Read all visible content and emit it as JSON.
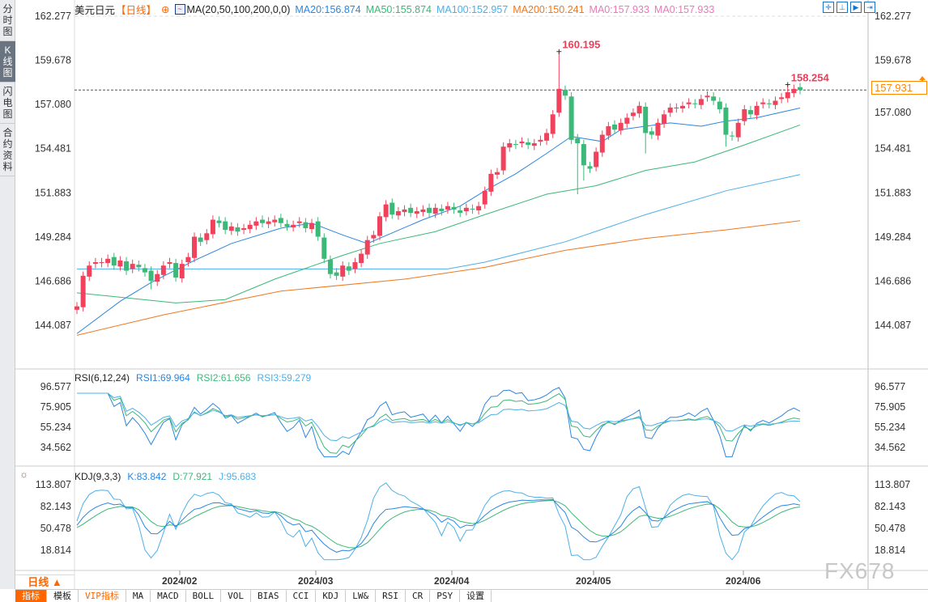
{
  "sidebar": {
    "tabs": [
      {
        "label": "分时图",
        "active": false
      },
      {
        "label": "K线图",
        "active": true
      },
      {
        "label": "闪电图",
        "active": false
      },
      {
        "label": "合约资料",
        "active": false
      }
    ]
  },
  "header": {
    "symbol": "美元日元",
    "period": "【日线】",
    "indicator": "MA(20,50,100,200,0,0)",
    "ma20": "MA20:156.874",
    "ma50": "MA50:155.874",
    "ma100": "MA100:152.957",
    "ma200": "MA200:150.241",
    "ma0a": "MA0:157.933",
    "ma0b": "MA0:157.933"
  },
  "colors": {
    "up": "#f0425c",
    "down": "#3cb878",
    "ma20": "#2a86e0",
    "ma50": "#3cb878",
    "ma100": "#4cb0e8",
    "ma200": "#f07820",
    "ma0": "#e87ab8"
  },
  "price_axis": [
    "162.277",
    "159.678",
    "157.080",
    "154.481",
    "151.883",
    "149.284",
    "146.686",
    "144.087"
  ],
  "last_price": "157.931",
  "annotations": {
    "high": "160.195",
    "recent_high": "158.254"
  },
  "rsi": {
    "title": "RSI(6,12,24)",
    "rsi1": "RSI1:69.964",
    "rsi2": "RSI2:61.656",
    "rsi3": "RSI3:59.279",
    "axis": [
      "96.577",
      "75.905",
      "55.234",
      "34.562"
    ]
  },
  "kdj": {
    "title": "KDJ(9,3,3)",
    "k": "K:83.842",
    "d": "D:77.921",
    "j": "J:95.683",
    "axis": [
      "113.807",
      "82.143",
      "50.478",
      "18.814"
    ]
  },
  "time_axis": [
    "2024/02",
    "2024/03",
    "2024/04",
    "2024/05",
    "2024/06"
  ],
  "period_selector": "日线 ▲",
  "toolbar": [
    "指标",
    "模板",
    "VIP指标",
    "MA",
    "MACD",
    "BOLL",
    "VOL",
    "BIAS",
    "CCI",
    "KDJ",
    "LW&",
    "RSI",
    "CR",
    "PSY",
    "设置"
  ],
  "watermark": "FX678",
  "chart_data": {
    "type": "candlestick",
    "open_first": 145.0,
    "closes": [
      145.2,
      147.0,
      147.6,
      147.8,
      147.8,
      148.0,
      147.6,
      147.9,
      147.3,
      147.7,
      147.5,
      147.2,
      146.7,
      147.1,
      147.6,
      147.8,
      146.9,
      147.7,
      148.1,
      149.3,
      149.0,
      149.5,
      150.3,
      150.1,
      149.7,
      149.9,
      149.6,
      149.8,
      150.0,
      150.2,
      150.1,
      150.2,
      150.3,
      150.1,
      149.9,
      150.0,
      150.2,
      149.8,
      150.1,
      149.3,
      148.0,
      147.1,
      147.0,
      147.6,
      147.3,
      147.8,
      148.3,
      149.1,
      149.4,
      150.5,
      151.2,
      150.6,
      150.8,
      150.9,
      150.7,
      150.8,
      150.9,
      150.7,
      151.0,
      150.8,
      151.1,
      150.9,
      150.7,
      151.0,
      150.9,
      151.1,
      152.0,
      153.0,
      153.1,
      154.6,
      154.8,
      154.7,
      154.9,
      154.7,
      154.8,
      155.0,
      155.4,
      156.5,
      158.0,
      157.6,
      155.0,
      154.8,
      153.5,
      153.3,
      154.3,
      155.3,
      155.8,
      155.6,
      156.0,
      156.3,
      156.6,
      157.0,
      155.4,
      155.3,
      156.0,
      156.5,
      156.9,
      156.9,
      157.0,
      157.2,
      157.1,
      157.4,
      157.6,
      157.3,
      156.8,
      155.3,
      155.2,
      156.0,
      156.8,
      156.5,
      157.0,
      157.2,
      157.1,
      157.3,
      157.5,
      157.8,
      158.0,
      157.93
    ],
    "high_overrides": {
      "78": 160.195,
      "115": 158.254,
      "79": 158.2
    },
    "low_overrides": {
      "81": 151.8,
      "82": 152.6,
      "92": 154.2,
      "105": 154.6,
      "12": 146.2
    },
    "ma_lines": {
      "ma20": [
        [
          0,
          143.6
        ],
        [
          7,
          145.5
        ],
        [
          12,
          146.6
        ],
        [
          19,
          147.9
        ],
        [
          25,
          148.9
        ],
        [
          33,
          149.8
        ],
        [
          38,
          150.1
        ],
        [
          43,
          149.4
        ],
        [
          47,
          148.9
        ],
        [
          56,
          150.3
        ],
        [
          62,
          151.1
        ],
        [
          66,
          152.0
        ],
        [
          71,
          153.0
        ],
        [
          76,
          154.2
        ],
        [
          80,
          155.2
        ],
        [
          85,
          154.9
        ],
        [
          88,
          155.6
        ],
        [
          92,
          155.8
        ],
        [
          96,
          156.0
        ],
        [
          101,
          155.8
        ],
        [
          105,
          156.1
        ],
        [
          110,
          156.3
        ],
        [
          117,
          156.874
        ]
      ],
      "ma50": [
        [
          0,
          146.0
        ],
        [
          16,
          145.4
        ],
        [
          24,
          145.6
        ],
        [
          32,
          146.8
        ],
        [
          43,
          148.2
        ],
        [
          49,
          148.9
        ],
        [
          58,
          149.6
        ],
        [
          66,
          150.6
        ],
        [
          76,
          151.8
        ],
        [
          84,
          152.3
        ],
        [
          92,
          153.2
        ],
        [
          100,
          153.7
        ],
        [
          108,
          154.7
        ],
        [
          117,
          155.874
        ]
      ],
      "ma100": [
        [
          0,
          147.4
        ],
        [
          30,
          147.4
        ],
        [
          60,
          147.4
        ],
        [
          66,
          147.8
        ],
        [
          79,
          149.0
        ],
        [
          92,
          150.6
        ],
        [
          105,
          152.0
        ],
        [
          117,
          152.957
        ]
      ],
      "ma200": [
        [
          0,
          143.5
        ],
        [
          14,
          144.7
        ],
        [
          33,
          146.1
        ],
        [
          53,
          146.8
        ],
        [
          66,
          147.5
        ],
        [
          79,
          148.5
        ],
        [
          92,
          149.2
        ],
        [
          105,
          149.7
        ],
        [
          117,
          150.241
        ]
      ]
    },
    "price_range": [
      144.087,
      162.277
    ],
    "rsi_range": [
      34.562,
      96.577
    ],
    "kdj_range": [
      18.814,
      113.807
    ]
  }
}
